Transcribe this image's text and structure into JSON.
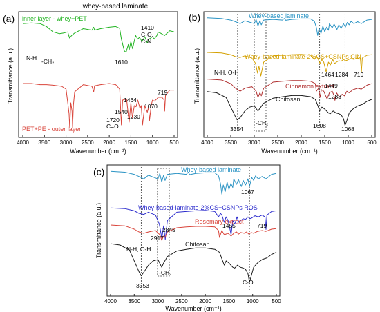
{
  "chart_data": [
    {
      "type": "line",
      "panel_label": "(a)",
      "title": "whey-based laminate",
      "xlabel": "Wavenumber (cm⁻¹)",
      "ylabel": "Transmittance (a.u.)",
      "xlim": [
        4000,
        500
      ],
      "xticks": [
        "4000",
        "3500",
        "3000",
        "2500",
        "2000",
        "1500",
        "1000",
        "500"
      ],
      "series": [
        {
          "name": "inner layer - whey+PET",
          "color": "#22b422",
          "x": [
            4000,
            3800,
            3600,
            3450,
            3300,
            3150,
            3050,
            2960,
            2920,
            2870,
            2800,
            2600,
            2400,
            2360,
            2340,
            2200,
            2000,
            1850,
            1760,
            1720,
            1650,
            1610,
            1560,
            1540,
            1500,
            1460,
            1420,
            1390,
            1340,
            1300,
            1240,
            1180,
            1120,
            1080,
            1040,
            1000,
            960,
            900,
            870,
            820,
            720,
            600,
            500
          ],
          "y": [
            0.12,
            0.1,
            0.12,
            0.2,
            0.35,
            0.4,
            0.38,
            0.35,
            0.52,
            0.45,
            0.38,
            0.26,
            0.3,
            0.22,
            0.3,
            0.26,
            0.22,
            0.2,
            0.25,
            0.55,
            0.88,
            0.92,
            0.7,
            0.86,
            0.62,
            0.82,
            0.6,
            0.45,
            0.55,
            0.5,
            0.62,
            0.48,
            0.66,
            0.55,
            0.52,
            0.48,
            0.55,
            0.45,
            0.36,
            0.38,
            0.45,
            0.32,
            0.35
          ]
        },
        {
          "name": "PET+PE - outer layer",
          "color": "#d9443a",
          "x": [
            4000,
            3800,
            3600,
            3450,
            3300,
            3100,
            3000,
            2960,
            2930,
            2915,
            2890,
            2860,
            2848,
            2830,
            2800,
            2600,
            2400,
            2360,
            2340,
            2200,
            2000,
            1850,
            1760,
            1720,
            1690,
            1600,
            1540,
            1500,
            1464,
            1420,
            1380,
            1340,
            1290,
            1260,
            1230,
            1180,
            1120,
            1090,
            1070,
            1030,
            1000,
            960,
            900,
            870,
            780,
            730,
            719,
            700,
            600,
            500
          ],
          "y": [
            0.2,
            0.2,
            0.22,
            0.22,
            0.23,
            0.25,
            0.3,
            0.55,
            0.75,
            1.0,
            0.55,
            0.7,
            1.0,
            0.6,
            0.35,
            0.22,
            0.25,
            0.35,
            0.24,
            0.22,
            0.2,
            0.22,
            0.3,
            0.95,
            0.5,
            0.48,
            0.9,
            0.55,
            0.82,
            0.6,
            0.62,
            0.5,
            0.65,
            0.6,
            0.95,
            0.6,
            0.72,
            0.62,
            0.88,
            0.6,
            0.5,
            0.52,
            0.48,
            0.45,
            0.45,
            0.5,
            0.7,
            0.42,
            0.32,
            0.32
          ]
        }
      ],
      "annotations": [
        "N-H",
        "-CH₂",
        "1410",
        "C-O,",
        "C-N",
        "1610",
        "1464",
        "1540",
        "1720",
        "C=O",
        "1230",
        "1070",
        "719"
      ]
    },
    {
      "type": "line",
      "panel_label": "(b)",
      "xlabel": "Wavenumber (cm⁻¹)",
      "ylabel": "Transmittance (a.u.)",
      "xlim": [
        4000,
        500
      ],
      "xticks": [
        "4000",
        "3500",
        "3000",
        "2500",
        "2000",
        "1500",
        "1000",
        "500"
      ],
      "series": [
        {
          "name": "Whey-based laminate",
          "color": "#2a93c4",
          "x": [
            4000,
            3700,
            3500,
            3400,
            3300,
            3200,
            3000,
            2960,
            2920,
            2880,
            2850,
            2800,
            2600,
            2400,
            2360,
            2330,
            2200,
            2000,
            1800,
            1720,
            1680,
            1650,
            1620,
            1580,
            1540,
            1500,
            1460,
            1420,
            1400,
            1340,
            1300,
            1240,
            1200,
            1150,
            1100,
            1060,
            1020,
            980,
            940,
            880,
            800,
            720,
            600,
            500
          ],
          "y": [
            0.05,
            0.08,
            0.15,
            0.22,
            0.3,
            0.18,
            0.3,
            0.12,
            0.4,
            0.18,
            0.35,
            0.15,
            0.12,
            0.15,
            0.08,
            0.16,
            0.12,
            0.1,
            0.1,
            0.2,
            0.45,
            0.8,
            0.5,
            0.72,
            0.4,
            0.65,
            0.45,
            0.58,
            0.3,
            0.48,
            0.32,
            0.55,
            0.35,
            0.5,
            0.3,
            0.45,
            0.25,
            0.35,
            0.2,
            0.3,
            0.22,
            0.3,
            0.15,
            0.12
          ]
        },
        {
          "name": "Whey-based-laminate-2%CS+CSNPs CIN",
          "color": "#d4a000",
          "x": [
            4000,
            3700,
            3500,
            3400,
            3300,
            3200,
            3050,
            2970,
            2930,
            2900,
            2860,
            2800,
            2600,
            2400,
            2200,
            2000,
            1800,
            1720,
            1680,
            1650,
            1600,
            1560,
            1520,
            1470,
            1420,
            1380,
            1330,
            1290,
            1250,
            1200,
            1150,
            1100,
            1060,
            1020,
            950,
            880,
            800,
            740,
            719,
            700,
            600,
            500
          ],
          "y": [
            0.1,
            0.12,
            0.18,
            0.25,
            0.28,
            0.22,
            0.3,
            0.5,
            0.85,
            0.6,
            0.95,
            0.45,
            0.22,
            0.2,
            0.18,
            0.17,
            0.2,
            0.35,
            0.25,
            0.3,
            0.5,
            0.35,
            0.45,
            0.8,
            0.45,
            0.55,
            0.35,
            0.5,
            0.45,
            0.4,
            0.42,
            0.35,
            0.4,
            0.38,
            0.32,
            0.35,
            0.3,
            0.35,
            0.8,
            0.3,
            0.2,
            0.18
          ]
        },
        {
          "name": "Cinnamon extract",
          "color": "#b03030",
          "x": [
            4000,
            3700,
            3500,
            3400,
            3300,
            3200,
            3050,
            2960,
            2920,
            2880,
            2850,
            2800,
            2600,
            2400,
            2200,
            2000,
            1800,
            1700,
            1680,
            1630,
            1600,
            1570,
            1520,
            1480,
            1450,
            1400,
            1340,
            1300,
            1283,
            1250,
            1180,
            1130,
            1080,
            1030,
            980,
            900,
            800,
            720,
            600,
            500
          ],
          "y": [
            0.15,
            0.18,
            0.3,
            0.45,
            0.55,
            0.45,
            0.4,
            0.55,
            0.75,
            0.6,
            0.7,
            0.45,
            0.25,
            0.22,
            0.2,
            0.2,
            0.22,
            0.3,
            0.55,
            0.45,
            0.75,
            0.5,
            0.55,
            0.7,
            0.8,
            0.6,
            0.55,
            0.7,
            0.85,
            0.6,
            0.75,
            0.65,
            0.7,
            0.55,
            0.6,
            0.5,
            0.45,
            0.48,
            0.35,
            0.3
          ]
        },
        {
          "name": "Chitosan",
          "color": "#1a1a1a",
          "x": [
            4000,
            3800,
            3600,
            3500,
            3400,
            3364,
            3300,
            3200,
            3100,
            3000,
            2920,
            2880,
            2800,
            2600,
            2400,
            2200,
            2000,
            1800,
            1700,
            1650,
            1608,
            1560,
            1500,
            1420,
            1380,
            1320,
            1260,
            1200,
            1150,
            1100,
            1068,
            1030,
            980,
            900,
            800,
            700,
            600,
            500
          ],
          "y": [
            0.05,
            0.08,
            0.2,
            0.45,
            0.7,
            0.78,
            0.72,
            0.55,
            0.45,
            0.42,
            0.55,
            0.48,
            0.35,
            0.22,
            0.18,
            0.15,
            0.15,
            0.18,
            0.25,
            0.4,
            0.55,
            0.45,
            0.5,
            0.6,
            0.62,
            0.55,
            0.6,
            0.62,
            0.65,
            0.75,
            0.92,
            0.8,
            0.6,
            0.5,
            0.42,
            0.38,
            0.3,
            0.25
          ]
        }
      ],
      "annotations": [
        "N-H, O-H",
        "3354",
        "-CH₂",
        "1608",
        "1464",
        "1284",
        "1449",
        "1283",
        "1068",
        "719"
      ]
    },
    {
      "type": "line",
      "panel_label": "(c)",
      "xlabel": "Wavenumber (cm⁻¹)",
      "ylabel": "Transmittance (a.u.)",
      "xlim": [
        4000,
        500
      ],
      "xticks": [
        "4000",
        "3500",
        "3000",
        "2500",
        "2000",
        "1500",
        "1000",
        "500"
      ],
      "series": [
        {
          "name": "Whey-based laminate",
          "color": "#2a93c4",
          "x": [
            4000,
            3700,
            3500,
            3400,
            3300,
            3200,
            3000,
            2960,
            2920,
            2880,
            2850,
            2800,
            2600,
            2400,
            2360,
            2330,
            2200,
            2000,
            1800,
            1720,
            1680,
            1650,
            1620,
            1580,
            1540,
            1500,
            1460,
            1420,
            1400,
            1340,
            1300,
            1240,
            1200,
            1150,
            1100,
            1067,
            1020,
            980,
            940,
            880,
            800,
            720,
            600,
            500
          ],
          "y": [
            0.05,
            0.08,
            0.15,
            0.22,
            0.3,
            0.18,
            0.3,
            0.12,
            0.4,
            0.18,
            0.35,
            0.15,
            0.12,
            0.15,
            0.08,
            0.16,
            0.12,
            0.1,
            0.1,
            0.2,
            0.45,
            0.8,
            0.5,
            0.72,
            0.4,
            0.65,
            0.45,
            0.58,
            0.3,
            0.48,
            0.32,
            0.55,
            0.35,
            0.5,
            0.3,
            0.55,
            0.25,
            0.35,
            0.2,
            0.3,
            0.22,
            0.3,
            0.15,
            0.12
          ]
        },
        {
          "name": "Whey-based-laminate-2%CS+CSNPs ROS",
          "color": "#2a2acc",
          "x": [
            4000,
            3700,
            3500,
            3400,
            3300,
            3200,
            3050,
            2970,
            2917,
            2880,
            2845,
            2800,
            2600,
            2400,
            2200,
            2000,
            1800,
            1720,
            1680,
            1650,
            1600,
            1560,
            1520,
            1470,
            1455,
            1420,
            1380,
            1330,
            1290,
            1250,
            1200,
            1150,
            1100,
            1060,
            1020,
            950,
            880,
            800,
            740,
            719,
            700,
            600,
            500
          ],
          "y": [
            0.1,
            0.12,
            0.18,
            0.25,
            0.28,
            0.22,
            0.3,
            0.55,
            0.95,
            0.6,
            0.98,
            0.45,
            0.22,
            0.2,
            0.18,
            0.17,
            0.2,
            0.35,
            0.25,
            0.3,
            0.5,
            0.35,
            0.45,
            0.75,
            0.85,
            0.45,
            0.55,
            0.35,
            0.5,
            0.45,
            0.4,
            0.42,
            0.35,
            0.4,
            0.38,
            0.32,
            0.35,
            0.3,
            0.35,
            0.7,
            0.3,
            0.2,
            0.18
          ]
        },
        {
          "name": "Rosemary extract",
          "color": "#d9443a",
          "x": [
            4000,
            3700,
            3500,
            3400,
            3300,
            3200,
            3050,
            2960,
            2920,
            2880,
            2850,
            2800,
            2600,
            2400,
            2200,
            2000,
            1800,
            1720,
            1700,
            1650,
            1600,
            1520,
            1455,
            1400,
            1340,
            1300,
            1250,
            1180,
            1130,
            1080,
            1030,
            980,
            900,
            800,
            720,
            600,
            500
          ],
          "y": [
            0.15,
            0.18,
            0.3,
            0.4,
            0.45,
            0.4,
            0.35,
            0.5,
            0.7,
            0.55,
            0.6,
            0.4,
            0.25,
            0.22,
            0.2,
            0.2,
            0.22,
            0.35,
            0.6,
            0.35,
            0.5,
            0.45,
            0.55,
            0.45,
            0.4,
            0.48,
            0.42,
            0.45,
            0.4,
            0.48,
            0.42,
            0.45,
            0.38,
            0.35,
            0.38,
            0.3,
            0.28
          ]
        },
        {
          "name": "Chitosan",
          "color": "#1a1a1a",
          "x": [
            4000,
            3800,
            3600,
            3500,
            3400,
            3353,
            3300,
            3200,
            3100,
            3000,
            2920,
            2880,
            2800,
            2600,
            2400,
            2200,
            2000,
            1800,
            1700,
            1650,
            1600,
            1560,
            1500,
            1420,
            1380,
            1320,
            1260,
            1200,
            1150,
            1100,
            1067,
            1030,
            980,
            900,
            800,
            700,
            600,
            500
          ],
          "y": [
            0.05,
            0.08,
            0.2,
            0.45,
            0.7,
            0.8,
            0.72,
            0.55,
            0.45,
            0.42,
            0.6,
            0.5,
            0.35,
            0.22,
            0.18,
            0.15,
            0.15,
            0.18,
            0.25,
            0.4,
            0.55,
            0.45,
            0.5,
            0.6,
            0.62,
            0.55,
            0.6,
            0.62,
            0.65,
            0.75,
            0.95,
            0.8,
            0.6,
            0.5,
            0.42,
            0.38,
            0.3,
            0.25
          ]
        }
      ],
      "annotations": [
        "1067",
        "2917",
        "2845",
        "1455",
        "719",
        "N-H, O-H",
        "3353",
        "-CH₂",
        "C-O"
      ]
    }
  ],
  "ticks_y": [
    "",
    ""
  ]
}
